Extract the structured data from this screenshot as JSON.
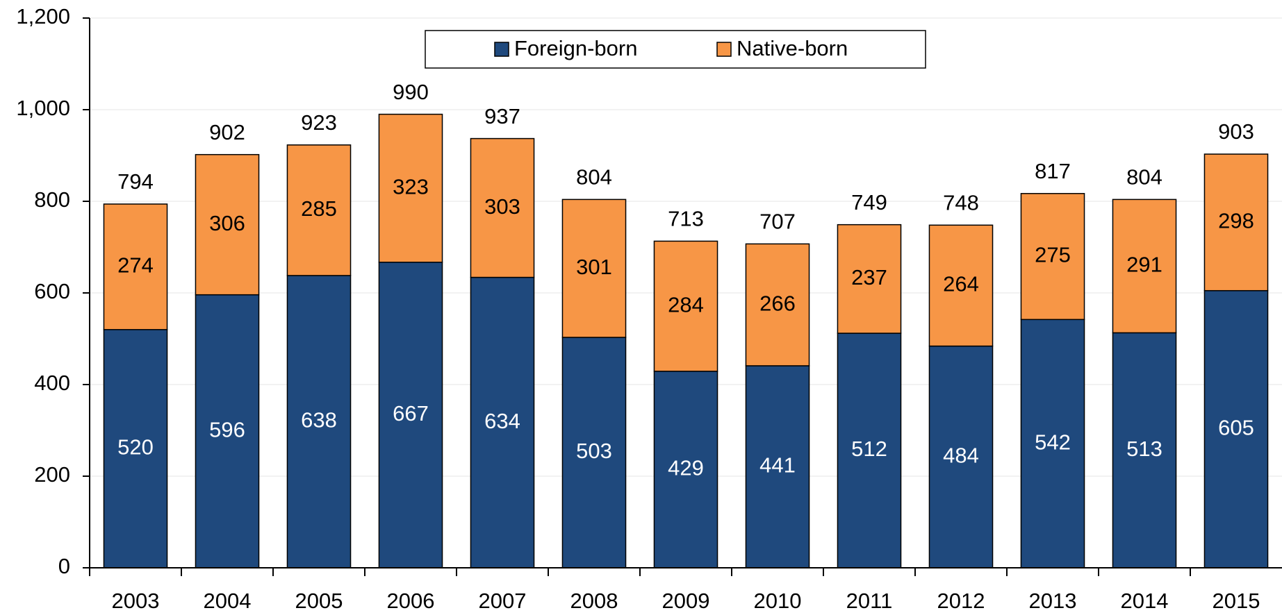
{
  "chart_data": {
    "type": "stacked_bar",
    "categories": [
      "2003",
      "2004",
      "2005",
      "2006",
      "2007",
      "2008",
      "2009",
      "2010",
      "2011",
      "2012",
      "2013",
      "2014",
      "2015"
    ],
    "series": [
      {
        "name": "Foreign-born",
        "color": "#1f497d",
        "values": [
          520,
          596,
          638,
          667,
          634,
          503,
          429,
          441,
          512,
          484,
          542,
          513,
          605
        ]
      },
      {
        "name": "Native-born",
        "color": "#f79646",
        "values": [
          274,
          306,
          285,
          323,
          303,
          301,
          284,
          266,
          237,
          264,
          275,
          291,
          298
        ]
      }
    ],
    "totals": [
      794,
      902,
      923,
      990,
      937,
      804,
      713,
      707,
      749,
      748,
      817,
      804,
      903
    ],
    "ylim": [
      0,
      1200
    ],
    "yticks": [
      0,
      200,
      400,
      600,
      800,
      {
        "value": 1000,
        "label": "1,000"
      },
      {
        "value": 1200,
        "label": "1,200"
      }
    ],
    "grid": true,
    "legend": "top"
  }
}
